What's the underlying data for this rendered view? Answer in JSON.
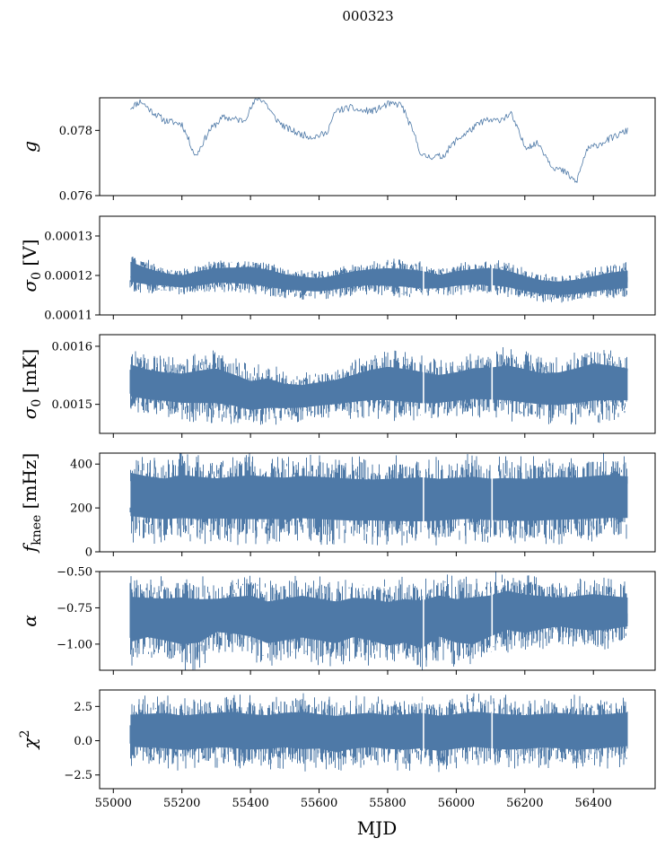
{
  "figure": {
    "suptitle": "000323",
    "xlabel": "MJD",
    "series_color": "#4e79a7"
  },
  "chart_data": [
    {
      "id": "gain",
      "type": "line",
      "ylabel": "g",
      "ylabel_math": "italic",
      "xlim": [
        54960,
        56580
      ],
      "ylim": [
        0.076,
        0.079
      ],
      "yticks": [
        0.076,
        0.078
      ],
      "ytick_labels": [
        "0.076",
        "0.078"
      ],
      "xticks": [
        55000,
        55200,
        55400,
        55600,
        55800,
        56000,
        56200,
        56400
      ],
      "show_xtick_labels": false,
      "x": [
        55050,
        55080,
        55110,
        55150,
        55200,
        55240,
        55280,
        55320,
        55380,
        55420,
        55440,
        55470,
        55500,
        55540,
        55580,
        55620,
        55650,
        55690,
        55720,
        55760,
        55800,
        55840,
        55880,
        55900,
        55920,
        55960,
        56000,
        56040,
        56080,
        56120,
        56160,
        56200,
        56240,
        56280,
        56320,
        56350,
        56380,
        56420,
        56460,
        56500
      ],
      "y": [
        0.0787,
        0.0789,
        0.0786,
        0.0783,
        0.0782,
        0.0772,
        0.078,
        0.0784,
        0.0783,
        0.079,
        0.0789,
        0.0784,
        0.0781,
        0.0779,
        0.0778,
        0.0779,
        0.0786,
        0.0787,
        0.0786,
        0.0786,
        0.0788,
        0.0788,
        0.0778,
        0.0772,
        0.0772,
        0.0772,
        0.0777,
        0.078,
        0.0783,
        0.0783,
        0.0785,
        0.0775,
        0.0776,
        0.0769,
        0.0767,
        0.0764,
        0.0774,
        0.0776,
        0.0778,
        0.078
      ]
    },
    {
      "id": "sigma0_v",
      "type": "area",
      "ylabel": "σ0 [V]",
      "ylabel_main": "σ",
      "ylabel_sub": "0",
      "ylabel_unit": "[V]",
      "xlim": [
        54960,
        56580
      ],
      "ylim": [
        0.00011,
        0.000135
      ],
      "yticks": [
        0.00011,
        0.00012,
        0.00013
      ],
      "ytick_labels": [
        "0.00011",
        "0.00012",
        "0.00013"
      ],
      "xticks": [
        55000,
        55200,
        55400,
        55600,
        55800,
        56000,
        56200,
        56400
      ],
      "show_xtick_labels": false,
      "x": [
        55050,
        55100,
        55150,
        55200,
        55250,
        55300,
        55350,
        55400,
        55450,
        55500,
        55550,
        55600,
        55650,
        55700,
        55750,
        55800,
        55850,
        55900,
        55950,
        56000,
        56050,
        56100,
        56150,
        56200,
        56250,
        56300,
        56350,
        56400,
        56450,
        56500
      ],
      "low": [
        0.0001165,
        0.0001162,
        0.0001163,
        0.0001158,
        0.0001161,
        0.0001168,
        0.0001166,
        0.0001162,
        0.0001155,
        0.000115,
        0.0001148,
        0.0001147,
        0.0001152,
        0.0001158,
        0.000116,
        0.0001157,
        0.0001155,
        0.000115,
        0.0001155,
        0.000116,
        0.0001162,
        0.000116,
        0.0001155,
        0.0001147,
        0.000114,
        0.0001138,
        0.000114,
        0.0001145,
        0.000115,
        0.0001152
      ],
      "high": [
        0.000125,
        0.000123,
        0.0001215,
        0.000121,
        0.0001222,
        0.000123,
        0.0001232,
        0.0001235,
        0.0001228,
        0.0001215,
        0.0001208,
        0.0001203,
        0.0001212,
        0.0001222,
        0.0001228,
        0.0001232,
        0.000123,
        0.0001225,
        0.0001212,
        0.0001222,
        0.0001228,
        0.0001232,
        0.0001225,
        0.000121,
        0.0001198,
        0.0001195,
        0.00012,
        0.000121,
        0.000122,
        0.0001225
      ],
      "gaps": [
        55905,
        56105
      ]
    },
    {
      "id": "sigma0_mk",
      "type": "area",
      "ylabel": "σ0 [mK]",
      "ylabel_main": "σ",
      "ylabel_sub": "0",
      "ylabel_unit": "[mK]",
      "xlim": [
        54960,
        56580
      ],
      "ylim": [
        0.00145,
        0.00162
      ],
      "yticks": [
        0.0015,
        0.0016
      ],
      "ytick_labels": [
        "0.0015",
        "0.0016"
      ],
      "xticks": [
        55000,
        55200,
        55400,
        55600,
        55800,
        56000,
        56200,
        56400
      ],
      "show_xtick_labels": false,
      "x": [
        55050,
        55100,
        55150,
        55200,
        55250,
        55300,
        55350,
        55400,
        55450,
        55500,
        55550,
        55600,
        55650,
        55700,
        55750,
        55800,
        55850,
        55900,
        55950,
        56000,
        56050,
        56100,
        56150,
        56200,
        56250,
        56300,
        56350,
        56400,
        56450,
        56500
      ],
      "low": [
        0.001494,
        0.00149,
        0.001488,
        0.001484,
        0.001482,
        0.00148,
        0.001478,
        0.001472,
        0.001475,
        0.001478,
        0.00148,
        0.001483,
        0.001485,
        0.001487,
        0.001488,
        0.001486,
        0.001484,
        0.001482,
        0.001485,
        0.001488,
        0.00149,
        0.001488,
        0.001485,
        0.001482,
        0.00148,
        0.001478,
        0.00148,
        0.001483,
        0.001485,
        0.001487
      ],
      "high": [
        0.001585,
        0.001575,
        0.00157,
        0.001568,
        0.001575,
        0.00158,
        0.001568,
        0.001555,
        0.00156,
        0.001548,
        0.001545,
        0.00155,
        0.001555,
        0.001565,
        0.001575,
        0.001582,
        0.001578,
        0.001572,
        0.001565,
        0.00157,
        0.001578,
        0.00158,
        0.001585,
        0.001578,
        0.00157,
        0.001572,
        0.00158,
        0.00159,
        0.001585,
        0.001578
      ],
      "gaps": [
        55905,
        56105
      ]
    },
    {
      "id": "fknee",
      "type": "area",
      "ylabel": "fknee [mHz]",
      "ylabel_main": "f",
      "ylabel_sub": "knee",
      "ylabel_unit": "[mHz]",
      "xlim": [
        54960,
        56580
      ],
      "ylim": [
        0,
        450
      ],
      "yticks": [
        0,
        200,
        400
      ],
      "ytick_labels": [
        "0",
        "200",
        "400"
      ],
      "xticks": [
        55000,
        55200,
        55400,
        55600,
        55800,
        56000,
        56200,
        56400
      ],
      "show_xtick_labels": false,
      "x": [
        55050,
        55100,
        55150,
        55200,
        55250,
        55300,
        55350,
        55400,
        55450,
        55500,
        55550,
        55600,
        55650,
        55700,
        55750,
        55800,
        55850,
        55900,
        55950,
        56000,
        56050,
        56100,
        56150,
        56200,
        56250,
        56300,
        56350,
        56400,
        56450,
        56500
      ],
      "low": [
        90,
        85,
        80,
        82,
        78,
        85,
        80,
        75,
        78,
        80,
        82,
        78,
        75,
        72,
        75,
        70,
        68,
        65,
        72,
        78,
        80,
        75,
        72,
        70,
        72,
        75,
        78,
        80,
        82,
        85
      ],
      "high": [
        420,
        400,
        390,
        410,
        400,
        390,
        400,
        410,
        400,
        395,
        405,
        400,
        395,
        390,
        385,
        390,
        395,
        400,
        390,
        395,
        400,
        390,
        395,
        390,
        395,
        400,
        395,
        405,
        410,
        400
      ],
      "gaps": [
        55905,
        56105
      ]
    },
    {
      "id": "alpha",
      "type": "area",
      "ylabel": "α",
      "ylabel_math": "italic",
      "xlim": [
        54960,
        56580
      ],
      "ylim": [
        -1.18,
        -0.5
      ],
      "yticks": [
        -1.0,
        -0.75,
        -0.5
      ],
      "ytick_labels": [
        "−1.00",
        "−0.75",
        "−0.50"
      ],
      "xticks": [
        55000,
        55200,
        55400,
        55600,
        55800,
        56000,
        56200,
        56400
      ],
      "show_xtick_labels": false,
      "x": [
        55050,
        55100,
        55150,
        55200,
        55250,
        55300,
        55350,
        55400,
        55450,
        55500,
        55550,
        55600,
        55650,
        55700,
        55750,
        55800,
        55850,
        55900,
        55950,
        56000,
        56050,
        56100,
        56150,
        56200,
        56250,
        56300,
        56350,
        56400,
        56450,
        56500
      ],
      "low": [
        -1.1,
        -1.05,
        -1.08,
        -1.12,
        -1.1,
        -1.0,
        -1.02,
        -1.05,
        -1.1,
        -1.08,
        -1.06,
        -1.08,
        -1.1,
        -1.05,
        -1.08,
        -1.12,
        -1.1,
        -1.15,
        -1.05,
        -1.1,
        -1.12,
        -1.05,
        -1.0,
        -1.02,
        -0.98,
        -0.95,
        -0.98,
        -1.0,
        -0.98,
        -0.95
      ],
      "high": [
        -0.58,
        -0.6,
        -0.6,
        -0.58,
        -0.6,
        -0.62,
        -0.6,
        -0.58,
        -0.62,
        -0.6,
        -0.58,
        -0.6,
        -0.62,
        -0.6,
        -0.6,
        -0.62,
        -0.6,
        -0.6,
        -0.58,
        -0.6,
        -0.58,
        -0.58,
        -0.55,
        -0.58,
        -0.6,
        -0.62,
        -0.6,
        -0.58,
        -0.6,
        -0.62
      ],
      "gaps": [
        55905,
        56105
      ]
    },
    {
      "id": "chi2",
      "type": "area",
      "ylabel": "χ2",
      "ylabel_main": "χ",
      "ylabel_sup": "2",
      "xlim": [
        54960,
        56580
      ],
      "ylim": [
        -3.5,
        3.7
      ],
      "yticks": [
        -2.5,
        0.0,
        2.5
      ],
      "ytick_labels": [
        "−2.5",
        "0.0",
        "2.5"
      ],
      "xticks": [
        55000,
        55200,
        55400,
        55600,
        55800,
        56000,
        56200,
        56400
      ],
      "xtick_labels": [
        "55000",
        "55200",
        "55400",
        "55600",
        "55800",
        "56000",
        "56200",
        "56400"
      ],
      "show_xtick_labels": true,
      "x": [
        55050,
        55100,
        55150,
        55200,
        55250,
        55300,
        55350,
        55400,
        55450,
        55500,
        55550,
        55600,
        55650,
        55700,
        55750,
        55800,
        55850,
        55900,
        55950,
        56000,
        56050,
        56100,
        56150,
        56200,
        56250,
        56300,
        56350,
        56400,
        56450,
        56500
      ],
      "low": [
        -1.3,
        -1.4,
        -1.5,
        -1.6,
        -1.5,
        -1.4,
        -1.5,
        -1.6,
        -1.5,
        -1.4,
        -1.6,
        -1.5,
        -1.8,
        -1.5,
        -1.4,
        -1.5,
        -1.6,
        -1.5,
        -1.7,
        -1.5,
        -1.4,
        -1.5,
        -1.6,
        -1.5,
        -1.4,
        -1.5,
        -1.6,
        -1.5,
        -1.4,
        -1.3
      ],
      "high": [
        2.6,
        2.7,
        2.8,
        2.6,
        2.7,
        2.8,
        2.9,
        2.7,
        2.6,
        2.8,
        2.9,
        2.7,
        2.6,
        2.7,
        2.8,
        2.6,
        2.7,
        2.8,
        2.6,
        2.7,
        2.9,
        2.8,
        2.7,
        2.6,
        2.7,
        2.8,
        2.7,
        2.6,
        2.7,
        2.8
      ],
      "gaps": [
        55905,
        56105
      ]
    }
  ]
}
